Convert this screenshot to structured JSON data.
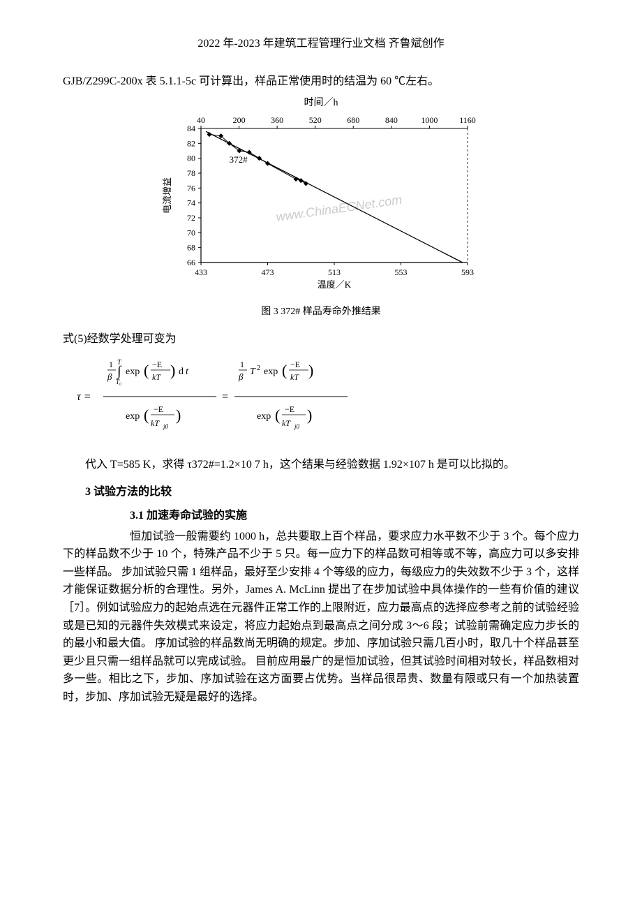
{
  "header": {
    "text": "2022 年-2023 年建筑工程管理行业文档  齐鲁斌创作"
  },
  "intro_line": "GJB/Z299C-200x 表 5.1.1-5c 可计算出，样品正常使用时的结温为 60 ℃左右。",
  "figure": {
    "top_title": "时间／h",
    "top_ticks": [
      "40",
      "200",
      "360",
      "520",
      "680",
      "840",
      "1000",
      "1160"
    ],
    "y_label": "电流增益",
    "y_ticks": [
      "84",
      "82",
      "80",
      "78",
      "76",
      "74",
      "72",
      "70",
      "68",
      "66"
    ],
    "x_label": "温度／K",
    "x_ticks": [
      "433",
      "473",
      "513",
      "553",
      "593"
    ],
    "series_label": "372#",
    "watermark": "www.ChinaECNet.com",
    "caption": "图 3  372# 样品寿命外推结果",
    "points": [
      {
        "x": 438,
        "y": 83.2
      },
      {
        "x": 445,
        "y": 83.0
      },
      {
        "x": 450,
        "y": 82.0
      },
      {
        "x": 456,
        "y": 81.0
      },
      {
        "x": 462,
        "y": 80.8
      },
      {
        "x": 468,
        "y": 80.0
      },
      {
        "x": 473,
        "y": 79.3
      },
      {
        "x": 490,
        "y": 77.2
      },
      {
        "x": 493,
        "y": 77.0
      },
      {
        "x": 496,
        "y": 76.6
      }
    ],
    "line_start": {
      "x": 436,
      "y": 83.6
    },
    "line_end": {
      "x": 590,
      "y": 66.0
    },
    "hline_y": 66,
    "axis": {
      "xmin": 433,
      "xmax": 593,
      "ymin": 66,
      "ymax": 84
    },
    "style": {
      "point_color": "#000000",
      "line_color": "#000000",
      "axis_color": "#000000",
      "bg": "#ffffff",
      "tick_font_size": 12,
      "label_font_size": 13,
      "watermark_color": "#cccccc",
      "watermark_font_size": 18
    }
  },
  "eq_intro": "式(5)经数学处理可变为",
  "para_after_eq": "代入 T=585 K，求得 τ372#=1.2×10 7 h，这个结果与经验数据 1.92×107 h 是可以比拟的。",
  "section3": {
    "title": "3 试验方法的比较",
    "sub1_title": "3.1 加速寿命试验的实施",
    "body": "恒加试验一般需要约 1000 h，总共要取上百个样品，要求应力水平数不少于 3 个。每个应力下的样品数不少于 10 个，特殊产品不少于 5 只。每一应力下的样品数可相等或不等，高应力可以多安排一些样品。 步加试验只需 1 组样品，最好至少安排 4 个等级的应力，每级应力的失效数不少于 3 个，这样才能保证数据分析的合理性。另外，James A. McLinn 提出了在步加试验中具体操作的一些有价值的建议［7］。例如试验应力的起始点选在元器件正常工作的上限附近，应力最高点的选择应参考之前的试验经验或是已知的元器件失效模式来设定，将应力起始点到最高点之间分成 3～6 段；试验前需确定应力步长的的最小和最大值。 序加试验的样品数尚无明确的规定。步加、序加试验只需几百小时，取几十个样品甚至更少且只需一组样品就可以完成试验。 目前应用最广的是恒加试验，但其试验时间相对较长，样品数相对多一些。相比之下，步加、序加试验在这方面要占优势。当样品很昂贵、数量有限或只有一个加热装置时，步加、序加试验无疑是最好的选择。"
  }
}
